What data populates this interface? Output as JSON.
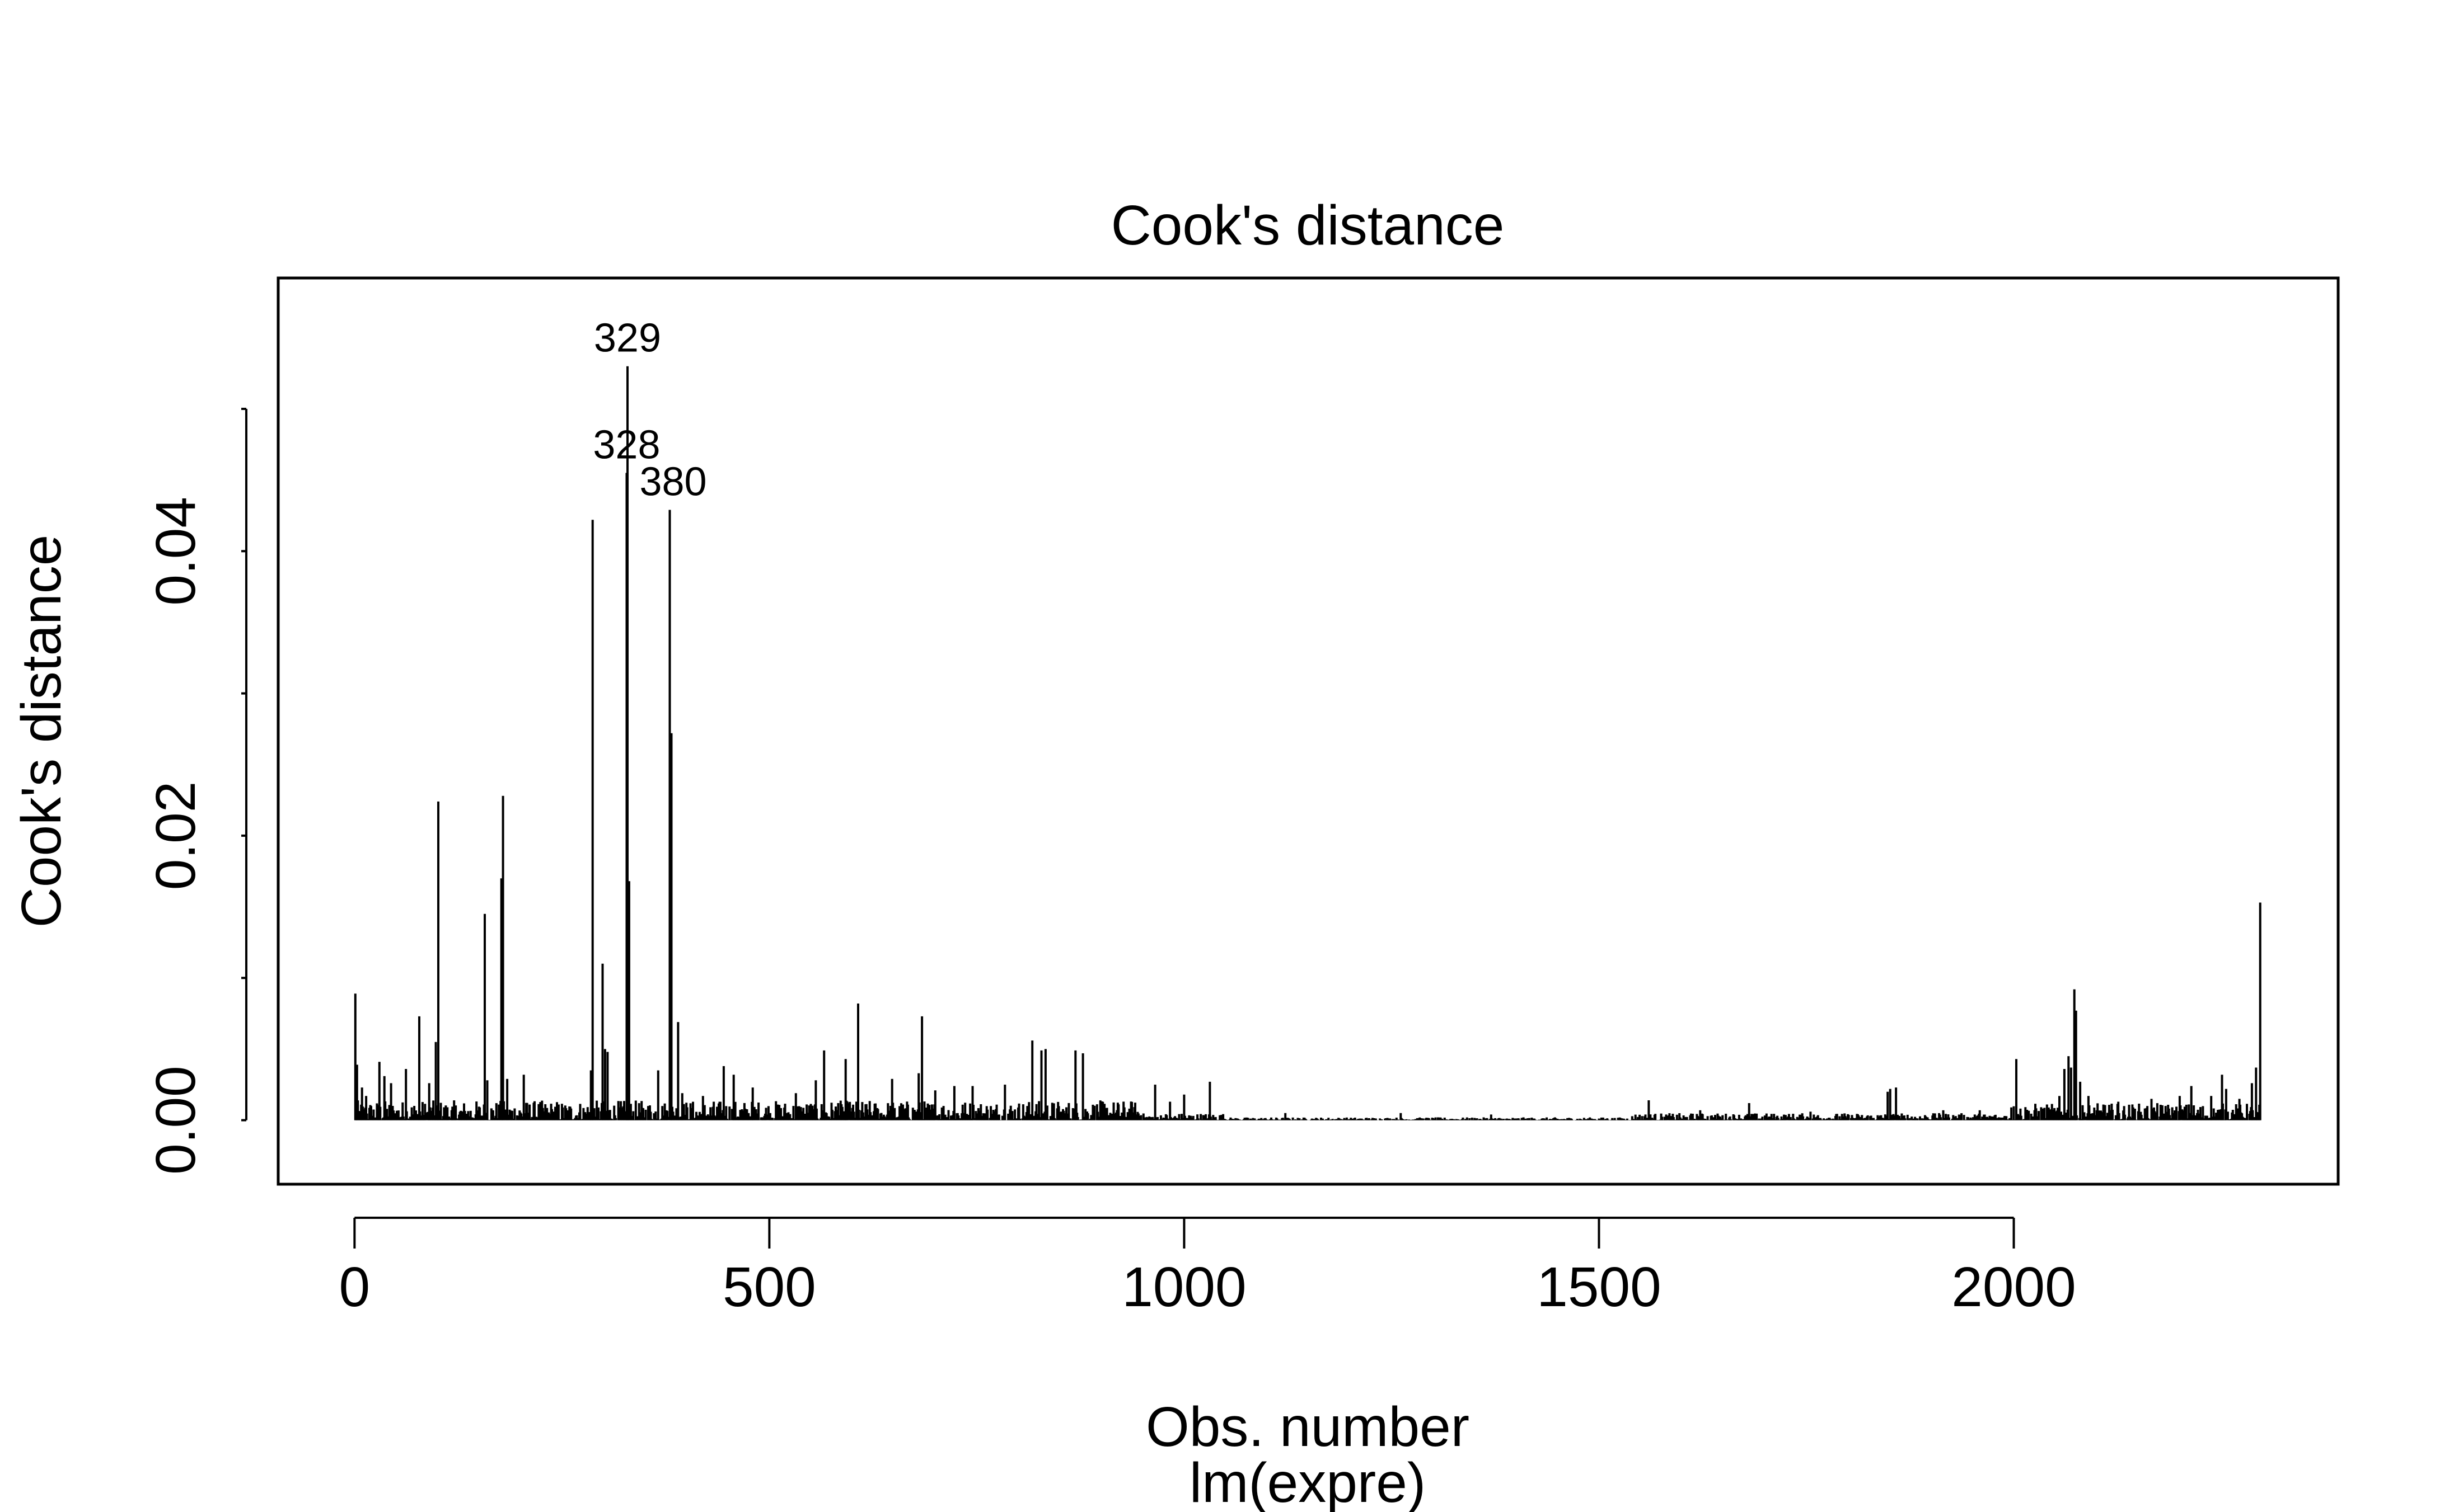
{
  "chart_data": {
    "type": "bar",
    "title": "Cook's distance",
    "xlabel": "Obs. number",
    "sublabel": "lm(expre)",
    "ylabel": "Cook's distance",
    "xlim": [
      -92,
      2391
    ],
    "ylim": [
      -0.0045,
      0.0592
    ],
    "xticks": [
      0,
      500,
      1000,
      1500,
      2000
    ],
    "yticks": [
      0.0,
      0.01,
      0.02,
      0.03,
      0.04,
      0.05
    ],
    "ytick_labels": [
      {
        "value": 0.0,
        "label": "0.00"
      },
      {
        "value": 0.02,
        "label": "0.02"
      },
      {
        "value": 0.04,
        "label": "0.04"
      }
    ],
    "xtick_labels": [
      {
        "value": 0,
        "label": "0"
      },
      {
        "value": 500,
        "label": "500"
      },
      {
        "value": 1000,
        "label": "1000"
      },
      {
        "value": 1500,
        "label": "1500"
      },
      {
        "value": 2000,
        "label": "2000"
      }
    ],
    "n": 2297,
    "series": [
      {
        "points": [
          [
            1,
            0.0089
          ],
          [
            3,
            0.0039
          ],
          [
            9,
            0.0023
          ],
          [
            14,
            0.0017
          ],
          [
            30,
            0.0041
          ],
          [
            36,
            0.0031
          ],
          [
            44,
            0.0026
          ],
          [
            62,
            0.0036
          ],
          [
            78,
            0.0073
          ],
          [
            90,
            0.0026
          ],
          [
            98,
            0.0055
          ],
          [
            101,
            0.0224
          ],
          [
            157,
            0.0145
          ],
          [
            160,
            0.0028
          ],
          [
            177,
            0.017
          ],
          [
            179,
            0.0228
          ],
          [
            184,
            0.0029
          ],
          [
            204,
            0.0032
          ],
          [
            285,
            0.0035
          ],
          [
            287,
            0.0422
          ],
          [
            299,
            0.011
          ],
          [
            302,
            0.005
          ],
          [
            305,
            0.0048
          ],
          [
            328,
            0.0455
          ],
          [
            329,
            0.053
          ],
          [
            331,
            0.0168
          ],
          [
            366,
            0.0035
          ],
          [
            380,
            0.0429
          ],
          [
            382,
            0.0272
          ],
          [
            390,
            0.0069
          ],
          [
            395,
            0.0019
          ],
          [
            420,
            0.0017
          ],
          [
            445,
            0.0038
          ],
          [
            457,
            0.0032
          ],
          [
            480,
            0.0023
          ],
          [
            532,
            0.0019
          ],
          [
            556,
            0.0028
          ],
          [
            566,
            0.0049
          ],
          [
            583,
            0.0012
          ],
          [
            592,
            0.0043
          ],
          [
            607,
            0.0082
          ],
          [
            648,
            0.0029
          ],
          [
            680,
            0.0033
          ],
          [
            684,
            0.0073
          ],
          [
            700,
            0.0021
          ],
          [
            723,
            0.0024
          ],
          [
            745,
            0.0024
          ],
          [
            784,
            0.0025
          ],
          [
            817,
            0.0056
          ],
          [
            828,
            0.0049
          ],
          [
            833,
            0.005
          ],
          [
            869,
            0.0049
          ],
          [
            878,
            0.0047
          ],
          [
            965,
            0.0025
          ],
          [
            983,
            0.0013
          ],
          [
            1000,
            0.0018
          ],
          [
            1031,
            0.0027
          ],
          [
            1122,
            0.0005
          ],
          [
            1261,
            0.0005
          ],
          [
            1370,
            0.0004
          ],
          [
            1560,
            0.0014
          ],
          [
            1622,
            0.0007
          ],
          [
            1681,
            0.0012
          ],
          [
            1755,
            0.0006
          ],
          [
            1848,
            0.002
          ],
          [
            1851,
            0.0022
          ],
          [
            1858,
            0.0023
          ],
          [
            1915,
            0.0007
          ],
          [
            1959,
            0.0007
          ],
          [
            1997,
            0.0009
          ],
          [
            2003,
            0.0043
          ],
          [
            2040,
            0.001
          ],
          [
            2055,
            0.0017
          ],
          [
            2061,
            0.0036
          ],
          [
            2066,
            0.0045
          ],
          [
            2069,
            0.0037
          ],
          [
            2073,
            0.0092
          ],
          [
            2075,
            0.0077
          ],
          [
            2080,
            0.0027
          ],
          [
            2090,
            0.0017
          ],
          [
            2108,
            0.0011
          ],
          [
            2126,
            0.0013
          ],
          [
            2144,
            0.0009
          ],
          [
            2166,
            0.0015
          ],
          [
            2183,
            0.001
          ],
          [
            2200,
            0.0017
          ],
          [
            2214,
            0.0024
          ],
          [
            2238,
            0.0017
          ],
          [
            2251,
            0.0032
          ],
          [
            2256,
            0.0022
          ],
          [
            2272,
            0.0015
          ],
          [
            2287,
            0.0026
          ],
          [
            2292,
            0.0037
          ],
          [
            2297,
            0.0153
          ]
        ],
        "low_level_bands": [
          {
            "from": 1,
            "to": 950,
            "max": 0.0014
          },
          {
            "from": 950,
            "to": 1050,
            "max": 0.0005
          },
          {
            "from": 1050,
            "to": 1540,
            "max": 0.0002
          },
          {
            "from": 1540,
            "to": 1840,
            "max": 0.0005
          },
          {
            "from": 1840,
            "to": 2000,
            "max": 0.0005
          },
          {
            "from": 2000,
            "to": 2297,
            "max": 0.0012
          }
        ]
      }
    ],
    "annotations": [
      {
        "label": "329",
        "x": 329,
        "y": 0.053
      },
      {
        "label": "328",
        "x": 328,
        "y": 0.0455
      },
      {
        "label": "380",
        "x": 380,
        "y": 0.0429
      }
    ]
  }
}
